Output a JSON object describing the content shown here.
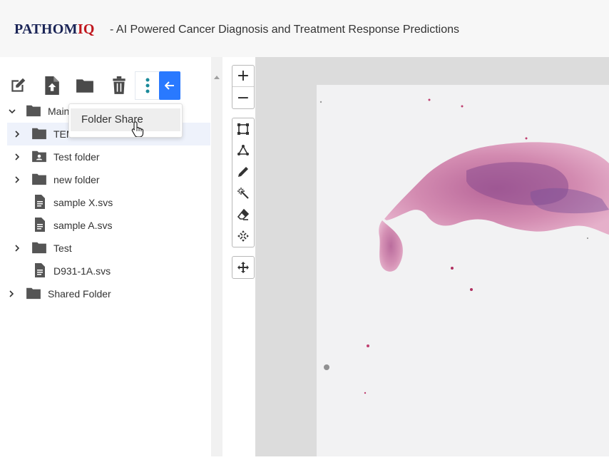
{
  "header": {
    "logo_part1": "PATHOM",
    "logo_part2": "IQ",
    "tagline": "- AI Powered Cancer Diagnosis and Treatment Response Predictions"
  },
  "toolbar": {
    "icons": [
      "edit-icon",
      "upload-file-icon",
      "folder-icon",
      "trash-icon",
      "more-vertical-icon",
      "arrow-left-icon"
    ]
  },
  "tree": {
    "items": [
      {
        "label": "Main",
        "type": "folder",
        "expanded": true
      },
      {
        "label": "TEM",
        "type": "folder",
        "selected": true
      },
      {
        "label": "Test folder",
        "type": "shared-folder"
      },
      {
        "label": "new folder",
        "type": "folder"
      },
      {
        "label": "sample X.svs",
        "type": "file"
      },
      {
        "label": "sample A.svs",
        "type": "file"
      },
      {
        "label": "Test",
        "type": "folder"
      },
      {
        "label": "D931-1A.svs",
        "type": "file"
      },
      {
        "label": "Shared Folder",
        "type": "folder"
      }
    ]
  },
  "context_menu": {
    "items": [
      "Folder Share"
    ]
  },
  "viewer": {
    "zoom_in": "+",
    "zoom_out": "−",
    "tools": [
      "rectangle-tool-icon",
      "polygon-tool-icon",
      "pencil-tool-icon",
      "magic-wand-icon",
      "eraser-icon",
      "fit-arrows-icon"
    ],
    "pan": "move-icon"
  },
  "colors": {
    "accent": "#2979ff",
    "logo_navy": "#1a2456",
    "logo_red": "#c0171e",
    "tissue_pink": "#d98ab0",
    "tissue_purple": "#7a4f9a"
  }
}
